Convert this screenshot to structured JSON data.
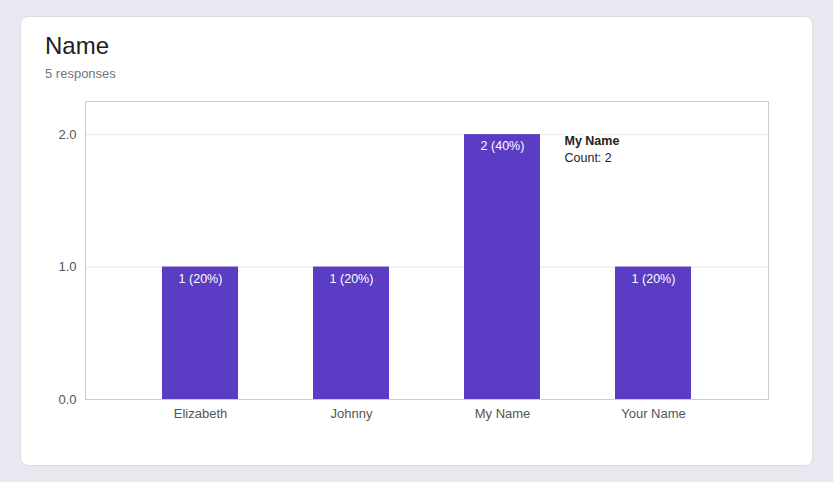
{
  "chart_data": {
    "type": "bar",
    "title": "Name",
    "subtitle": "5 responses",
    "categories": [
      "Elizabeth",
      "Johnny",
      "My Name",
      "Your Name"
    ],
    "values": [
      1,
      1,
      2,
      1
    ],
    "value_labels": [
      "1 (20%)",
      "1 (20%)",
      "2 (40%)",
      "1 (20%)"
    ],
    "data_labels": true,
    "color": "#5B3CC4",
    "ylim": [
      0,
      2.25
    ],
    "yticks": [
      0,
      1,
      2
    ],
    "grid": true,
    "annotations": [
      {
        "category": "My Name",
        "lines": [
          "My Name",
          "Count: 2"
        ]
      }
    ]
  }
}
